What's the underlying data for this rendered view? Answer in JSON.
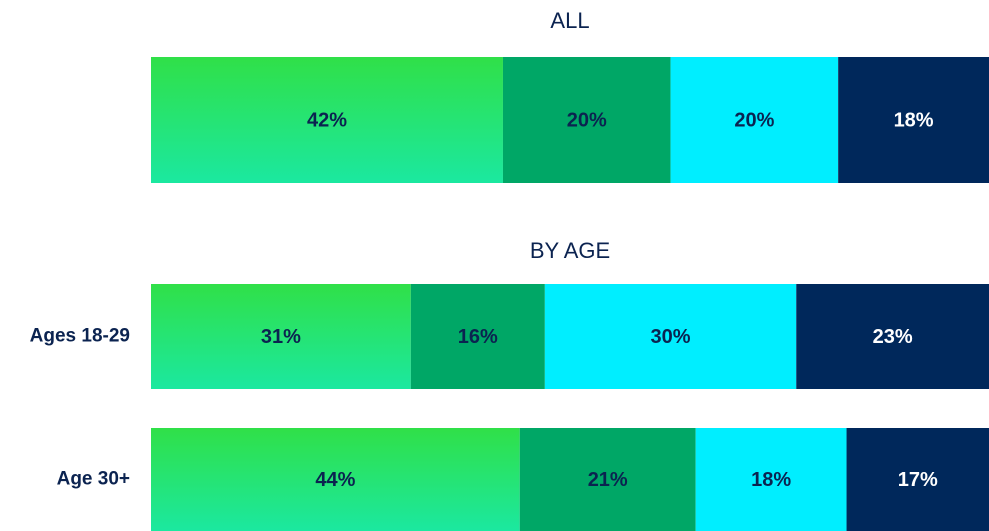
{
  "chart_data": [
    {
      "type": "bar",
      "orientation": "horizontal",
      "stacked": true,
      "title": "ALL",
      "categories": [
        null
      ],
      "xlim": [
        0,
        100
      ],
      "series": [
        {
          "color": "#24e27c",
          "gradient": [
            "#30e048",
            "#1be8a0"
          ],
          "values": [
            42
          ],
          "value_labels": [
            "42%"
          ]
        },
        {
          "color": "#00a766",
          "values": [
            20
          ],
          "value_labels": [
            "20%"
          ]
        },
        {
          "color": "#00eeff",
          "values": [
            20
          ],
          "value_labels": [
            "20%"
          ]
        },
        {
          "color": "#00285b",
          "values": [
            18
          ],
          "value_labels": [
            "18%"
          ]
        }
      ]
    },
    {
      "type": "bar",
      "orientation": "horizontal",
      "stacked": true,
      "title": "BY AGE",
      "categories": [
        "Ages 18-29",
        "Age 30+"
      ],
      "xlim": [
        0,
        100
      ],
      "series": [
        {
          "color": "#24e27c",
          "gradient": [
            "#30e048",
            "#1be8a0"
          ],
          "values": [
            31,
            44
          ],
          "value_labels": [
            "31%",
            "44%"
          ]
        },
        {
          "color": "#00a766",
          "values": [
            16,
            21
          ],
          "value_labels": [
            "16%",
            "21%"
          ]
        },
        {
          "color": "#00eeff",
          "values": [
            30,
            18
          ],
          "value_labels": [
            "30%",
            "18%"
          ]
        },
        {
          "color": "#00285b",
          "values": [
            23,
            17
          ],
          "value_labels": [
            "23%",
            "17%"
          ]
        }
      ]
    }
  ]
}
